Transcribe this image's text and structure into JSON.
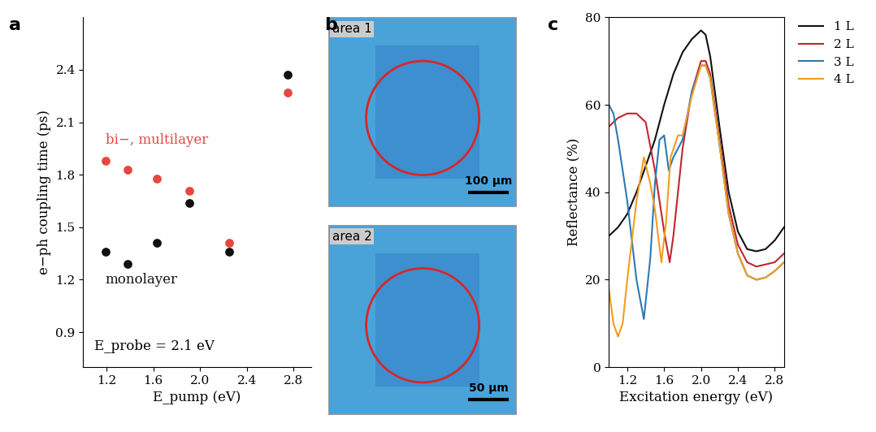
{
  "chart_data": [
    {
      "type": "scatter",
      "panel": "a",
      "x_label": "E_pump (eV)",
      "y_label": "e−ph coupling time (ps)",
      "xlim": [
        1.0,
        2.95
      ],
      "xticks": [
        1.2,
        1.6,
        2.0,
        2.4,
        2.8
      ],
      "ylim": [
        0.7,
        2.7
      ],
      "yticks": [
        0.9,
        1.2,
        1.5,
        1.8,
        2.1,
        2.4
      ],
      "annotations": [
        "E_probe = 2.1 eV"
      ],
      "series": [
        {
          "name": "bi−, multilayer",
          "color": "#e8463f",
          "marker": "circle",
          "x": [
            1.19,
            1.38,
            1.63,
            1.91,
            2.25,
            2.75
          ],
          "values": [
            1.88,
            1.83,
            1.78,
            1.71,
            1.41,
            2.27
          ]
        },
        {
          "name": "monolayer",
          "color": "#111111",
          "marker": "circle",
          "x": [
            1.19,
            1.38,
            1.63,
            1.91,
            2.25,
            2.75
          ],
          "values": [
            1.36,
            1.29,
            1.41,
            1.64,
            1.36,
            2.37
          ]
        }
      ]
    },
    {
      "type": "line",
      "panel": "c",
      "x_label": "Excitation energy (eV)",
      "y_label": "Reflectance (%)",
      "xlim": [
        1.0,
        2.9
      ],
      "xticks": [
        1.2,
        1.6,
        2.0,
        2.4,
        2.8
      ],
      "ylim": [
        0,
        80
      ],
      "yticks": [
        0,
        20,
        40,
        60,
        80
      ],
      "legend": "right",
      "series": [
        {
          "name": "1 L",
          "color": "#111111",
          "x": [
            1.0,
            1.1,
            1.2,
            1.3,
            1.4,
            1.5,
            1.6,
            1.7,
            1.8,
            1.9,
            2.0,
            2.05,
            2.1,
            2.2,
            2.3,
            2.4,
            2.5,
            2.6,
            2.7,
            2.8,
            2.9
          ],
          "values": [
            30,
            32,
            35,
            40,
            46,
            52,
            60,
            67,
            72,
            75,
            77,
            76,
            71,
            55,
            40,
            31,
            27,
            26.5,
            27,
            29,
            32
          ]
        },
        {
          "name": "2 L",
          "color": "#c0262d",
          "x": [
            1.0,
            1.1,
            1.2,
            1.3,
            1.4,
            1.5,
            1.6,
            1.66,
            1.7,
            1.8,
            1.9,
            2.0,
            2.05,
            2.1,
            2.2,
            2.3,
            2.4,
            2.5,
            2.6,
            2.7,
            2.8,
            2.9
          ],
          "values": [
            55,
            57,
            58,
            58,
            56,
            45,
            31,
            24,
            30,
            50,
            63,
            70,
            70,
            67,
            52,
            37,
            28,
            24,
            23,
            23.5,
            24,
            26
          ]
        },
        {
          "name": "3 L",
          "color": "#2a7ab8",
          "x": [
            1.0,
            1.05,
            1.1,
            1.2,
            1.3,
            1.38,
            1.45,
            1.5,
            1.55,
            1.6,
            1.65,
            1.7,
            1.8,
            1.9,
            2.0,
            2.05,
            2.1,
            2.2,
            2.3,
            2.4,
            2.5,
            2.6,
            2.7,
            2.8,
            2.9
          ],
          "values": [
            60,
            58,
            52,
            38,
            20,
            11,
            25,
            42,
            52,
            53,
            45,
            48,
            52,
            63,
            69,
            69,
            66,
            51,
            35,
            26,
            21,
            20,
            20.5,
            22,
            24
          ]
        },
        {
          "name": "4 L",
          "color": "#f39c1f",
          "x": [
            1.0,
            1.05,
            1.1,
            1.15,
            1.2,
            1.3,
            1.38,
            1.45,
            1.5,
            1.57,
            1.62,
            1.67,
            1.75,
            1.8,
            1.9,
            2.0,
            2.05,
            2.1,
            2.2,
            2.3,
            2.4,
            2.5,
            2.6,
            2.7,
            2.8,
            2.9
          ],
          "values": [
            18,
            10,
            7,
            10,
            20,
            38,
            48,
            42,
            36,
            24,
            33,
            48,
            53,
            53,
            62,
            69,
            69,
            66,
            51,
            35,
            26,
            21,
            20,
            20.5,
            22,
            24
          ]
        }
      ]
    }
  ],
  "images": {
    "panel": "b",
    "items": [
      {
        "label": "area 1",
        "scale_bar": "100 µm"
      },
      {
        "label": "area 2",
        "scale_bar": "50 µm"
      }
    ]
  }
}
